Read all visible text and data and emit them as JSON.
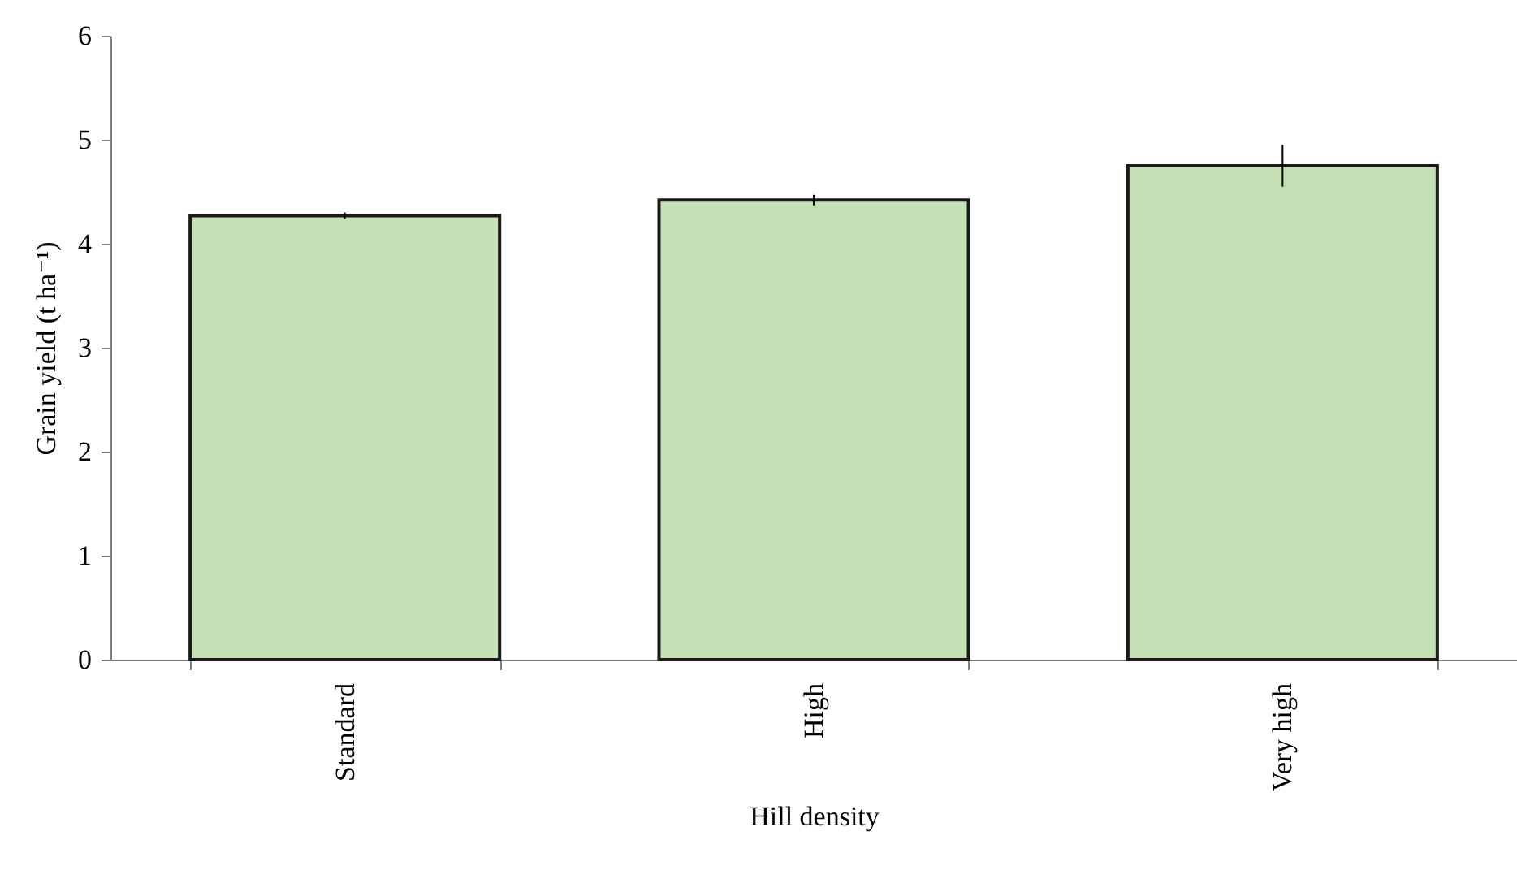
{
  "chart_data": {
    "type": "bar",
    "xlabel": "Hill density",
    "ylabel": "Grain yield (t ha⁻¹)",
    "categories": [
      "Standard",
      "High",
      "Very high"
    ],
    "values": [
      4.27,
      4.42,
      4.75
    ],
    "errors": [
      0.03,
      0.05,
      0.2
    ],
    "color": "#c5e0b4",
    "ylim": [
      0,
      6
    ],
    "yticks": [
      0,
      1,
      2,
      3,
      4,
      5,
      6
    ],
    "grid": false
  }
}
